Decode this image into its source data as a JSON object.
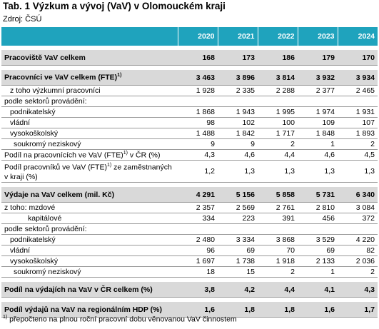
{
  "title": "Tab. 1 Výzkum a vývoj (VaV) v Olomouckém kraji",
  "source": "Zdroj: ČSÚ",
  "years": [
    "2020",
    "2021",
    "2022",
    "2023",
    "2024"
  ],
  "rows": [
    {
      "label": "Pracoviště VaV celkem",
      "values": [
        "168",
        "173",
        "186",
        "179",
        "170"
      ]
    },
    {
      "label": "Pracovníci ve VaV celkem (FTE)",
      "values": [
        "3 463",
        "3 896",
        "3 814",
        "3 932",
        "3 934"
      ]
    },
    {
      "label": "z toho výzkumní pracovníci",
      "values": [
        "1 928",
        "2 335",
        "2 288",
        "2 377",
        "2 465"
      ]
    },
    {
      "label": "podle sektorů provádění:"
    },
    {
      "label": "podnikatelský",
      "values": [
        "1 868",
        "1 943",
        "1 995",
        "1 974",
        "1 931"
      ]
    },
    {
      "label": "vládní",
      "values": [
        "98",
        "102",
        "100",
        "109",
        "107"
      ]
    },
    {
      "label": "vysokoškolský",
      "values": [
        "1 488",
        "1 842",
        "1 717",
        "1 848",
        "1 893"
      ]
    },
    {
      "label": "soukromý neziskový",
      "values": [
        "9",
        "9",
        "2",
        "1",
        "2"
      ]
    },
    {
      "label": "Podíl na pracovnících ve VaV (FTE)",
      "label_tail": " v ČR (%)",
      "values": [
        "4,3",
        "4,6",
        "4,4",
        "4,6",
        "4,5"
      ]
    },
    {
      "label": "Podíl pracovníků ve VaV (FTE)",
      "label_tail": " ze zaměstnaných v kraji (%)",
      "values": [
        "1,2",
        "1,3",
        "1,3",
        "1,3",
        "1,3"
      ]
    },
    {
      "label": "Výdaje na VaV celkem (mil. Kč)",
      "values": [
        "4 291",
        "5 156",
        "5 858",
        "5 731",
        "6 340"
      ]
    },
    {
      "label": "z toho: mzdové",
      "values": [
        "2 357",
        "2 569",
        "2 761",
        "2 810",
        "3 084"
      ]
    },
    {
      "label": "kapitálové",
      "values": [
        "334",
        "223",
        "391",
        "456",
        "372"
      ]
    },
    {
      "label": "podle sektorů provádění:"
    },
    {
      "label": "podnikatelský",
      "values": [
        "2 480",
        "3 334",
        "3 868",
        "3 529",
        "4 220"
      ]
    },
    {
      "label": "vládní",
      "values": [
        "96",
        "69",
        "70",
        "69",
        "82"
      ]
    },
    {
      "label": "vysokoškolský",
      "values": [
        "1 697",
        "1 738",
        "1 918",
        "2 133",
        "2 036"
      ]
    },
    {
      "label": "soukromý neziskový",
      "values": [
        "18",
        "15",
        "2",
        "1",
        "2"
      ]
    },
    {
      "label": "Podíl na výdajích na VaV v ČR celkem (%)",
      "values": [
        "3,8",
        "4,2",
        "4,4",
        "4,1",
        "4,3"
      ]
    },
    {
      "label": "Podíl výdajů na VaV na regionálním HDP (%)",
      "values": [
        "1,6",
        "1,8",
        "1,8",
        "1,6",
        "1,7"
      ]
    }
  ],
  "footnote_mark": "1)",
  "footnote": " přepočteno na plnou roční pracovní dobu věnovanou VaV činnostem"
}
